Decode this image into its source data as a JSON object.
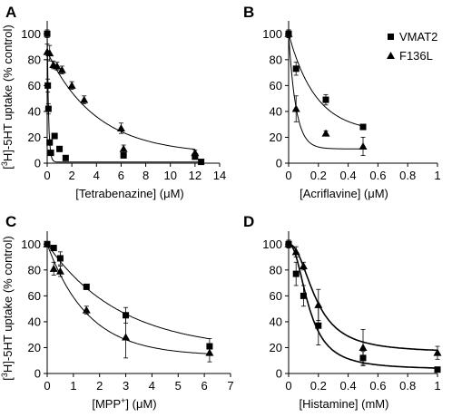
{
  "legend": [
    {
      "label": "VMAT2",
      "marker": "square"
    },
    {
      "label": "F136L",
      "marker": "triangle"
    }
  ],
  "chart_data": [
    {
      "type": "scatter",
      "panel": "A",
      "xlabel": "[Tetrabenazine] (μM)",
      "ylabel": "[3H]-5HT uptake (% control)",
      "xlim": [
        0,
        14
      ],
      "ylim": [
        0,
        110
      ],
      "xticks": [
        0,
        2,
        4,
        6,
        8,
        10,
        12,
        14
      ],
      "yticks": [
        0,
        20,
        40,
        60,
        80,
        100
      ],
      "series": [
        {
          "name": "VMAT2",
          "marker": "square",
          "x": [
            0.0,
            0.05,
            0.1,
            0.2,
            0.3,
            0.6,
            1.0,
            1.5,
            6.2,
            12.0,
            12.5
          ],
          "y": [
            100,
            60,
            42,
            16,
            8,
            21,
            11,
            4,
            6,
            5,
            1
          ],
          "err": [
            3,
            5,
            4,
            2,
            1,
            2,
            2,
            1,
            1,
            1,
            1
          ],
          "fit": "decay"
        },
        {
          "name": "F136L",
          "marker": "triangle",
          "x": [
            0.0,
            0.2,
            0.5,
            0.8,
            1.2,
            2.0,
            3.0,
            6.0,
            6.2,
            12.0
          ],
          "y": [
            86,
            85,
            76,
            75,
            72,
            60,
            49,
            27,
            11,
            8
          ],
          "err": [
            6,
            6,
            3,
            3,
            3,
            3,
            3,
            4,
            3,
            2
          ],
          "fit": "decay"
        }
      ]
    },
    {
      "type": "scatter",
      "panel": "B",
      "xlabel": "[Acriflavine] (μM)",
      "ylabel": "",
      "xlim": [
        0,
        1
      ],
      "ylim": [
        0,
        110
      ],
      "xticks": [
        0,
        0.2,
        0.4,
        0.6,
        0.8,
        1
      ],
      "yticks": [
        0,
        20,
        40,
        60,
        80,
        100
      ],
      "series": [
        {
          "name": "VMAT2",
          "marker": "square",
          "x": [
            0.0,
            0.05,
            0.25,
            0.5
          ],
          "y": [
            100,
            73,
            49,
            28
          ],
          "err": [
            3,
            5,
            4,
            2
          ],
          "fit": "decay"
        },
        {
          "name": "F136L",
          "marker": "triangle",
          "x": [
            0.0,
            0.05,
            0.25,
            0.5
          ],
          "y": [
            100,
            42,
            23,
            13
          ],
          "err": [
            3,
            10,
            2,
            7
          ],
          "fit": "decay"
        }
      ]
    },
    {
      "type": "scatter",
      "panel": "C",
      "xlabel": "[MPP+] (μM)",
      "ylabel": "[3H]-5HT uptake (% control)",
      "xlim": [
        0,
        7
      ],
      "ylim": [
        0,
        110
      ],
      "xticks": [
        0,
        1,
        2,
        3,
        4,
        5,
        6,
        7
      ],
      "yticks": [
        0,
        20,
        40,
        60,
        80,
        100
      ],
      "series": [
        {
          "name": "VMAT2",
          "marker": "square",
          "x": [
            0.0,
            0.25,
            0.5,
            1.5,
            3.0,
            6.2
          ],
          "y": [
            100,
            97,
            89,
            67,
            45,
            21
          ],
          "err": [
            2,
            2,
            5,
            2,
            6,
            6
          ],
          "fit": "decay"
        },
        {
          "name": "F136L",
          "marker": "triangle",
          "x": [
            0.0,
            0.25,
            0.5,
            1.5,
            3.0,
            6.2
          ],
          "y": [
            100,
            81,
            79,
            49,
            28,
            16
          ],
          "err": [
            2,
            5,
            4,
            3,
            16,
            7
          ],
          "fit": "decay"
        }
      ]
    },
    {
      "type": "scatter",
      "panel": "D",
      "xlabel": "[Histamine] (mM)",
      "ylabel": "",
      "xlim": [
        0,
        1
      ],
      "ylim": [
        0,
        110
      ],
      "xticks": [
        0,
        0.2,
        0.4,
        0.6,
        0.8,
        1
      ],
      "yticks": [
        0,
        20,
        40,
        60,
        80,
        100
      ],
      "series": [
        {
          "name": "VMAT2",
          "marker": "square",
          "x": [
            0.0,
            0.05,
            0.1,
            0.2,
            0.5,
            1.0
          ],
          "y": [
            100,
            77,
            60,
            37,
            12,
            3
          ],
          "err": [
            3,
            9,
            8,
            15,
            5,
            1
          ],
          "fit": "sigmoid"
        },
        {
          "name": "F136L",
          "marker": "triangle",
          "x": [
            0.0,
            0.05,
            0.1,
            0.2,
            0.5,
            1.0
          ],
          "y": [
            100,
            94,
            83,
            53,
            20,
            16
          ],
          "err": [
            3,
            4,
            3,
            12,
            14,
            5
          ],
          "fit": "sigmoid"
        }
      ]
    }
  ]
}
